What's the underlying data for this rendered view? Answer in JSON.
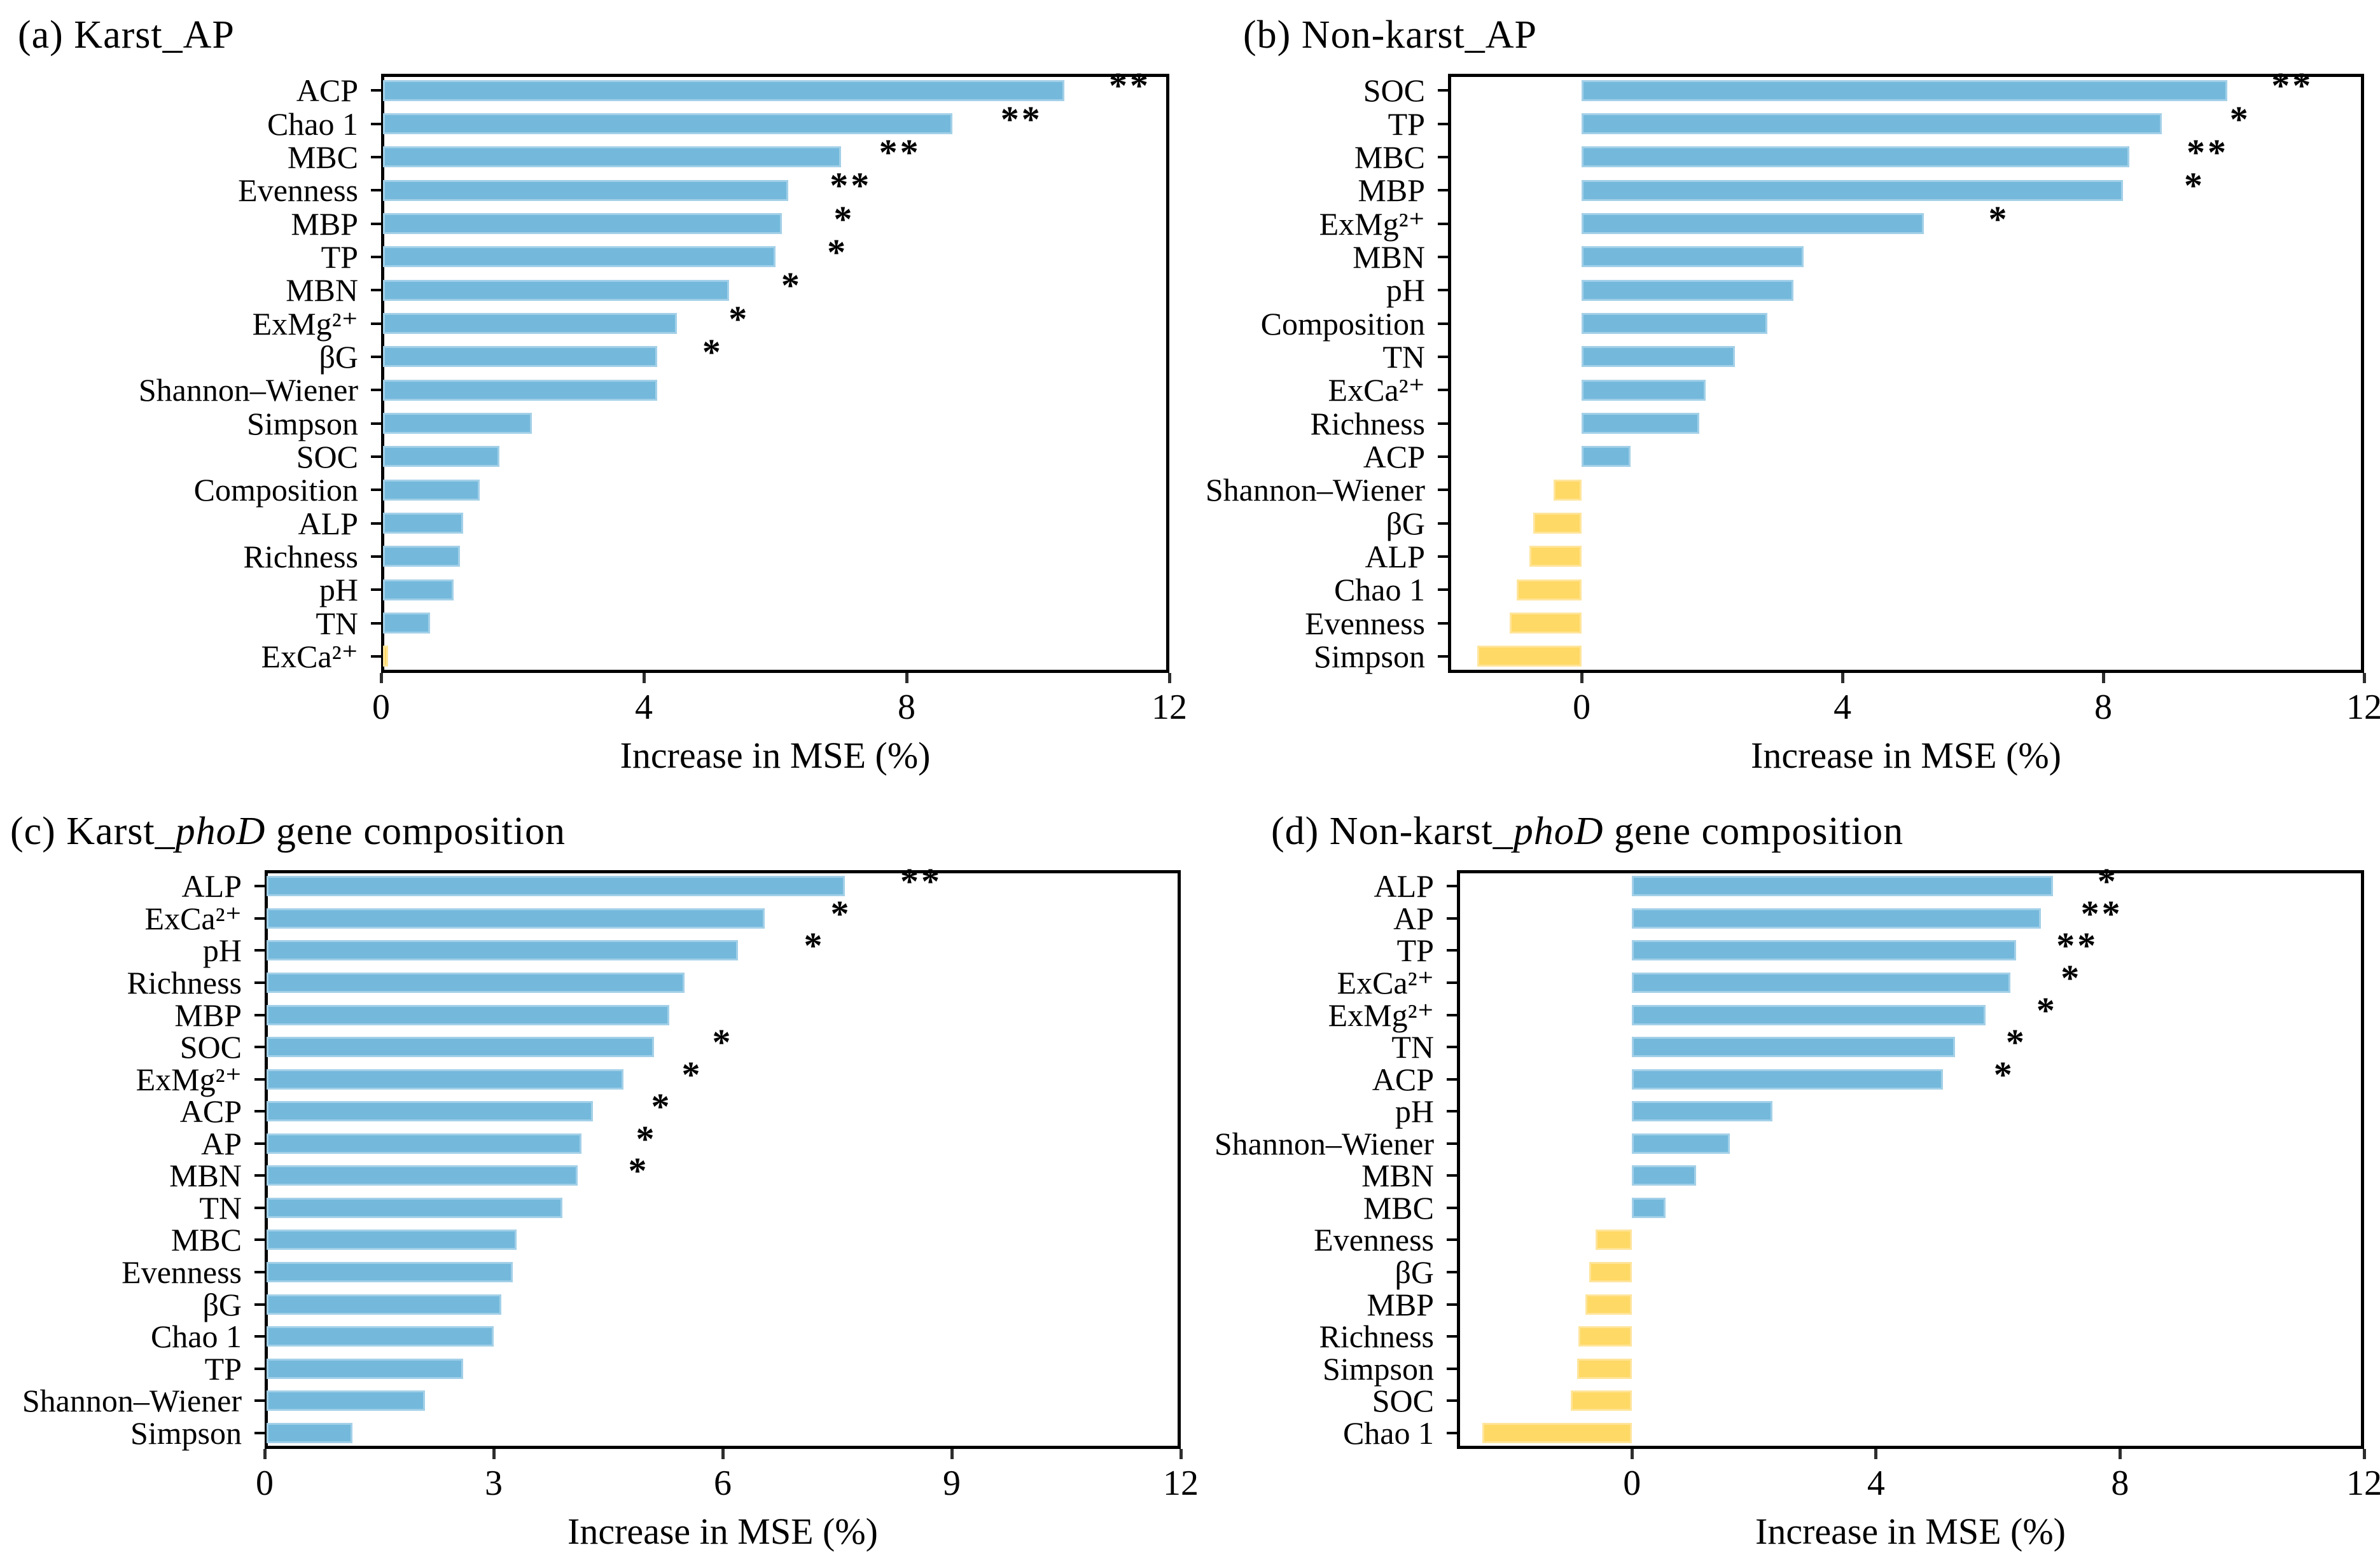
{
  "figure": {
    "xlabel": "Increase in MSE (%)",
    "colors": {
      "positive_bar": "#74b9dc",
      "positive_edge": "#a3d0e8",
      "negative_bar": "#ffd966",
      "negative_edge": "#ffe59b",
      "frame": "#000000",
      "text": "#000000"
    },
    "significance_legend": {
      "single": "*",
      "double": "**"
    }
  },
  "chart_data": [
    {
      "type": "bar",
      "orientation": "horizontal",
      "panel": "a",
      "title_parts": [
        {
          "t": "(a) Karst_AP"
        }
      ],
      "xlabel": "Increase in MSE (%)",
      "xlim": [
        0,
        12
      ],
      "xticks": [
        0,
        4,
        8,
        12
      ],
      "grid": false,
      "categories": [
        "ACP",
        "Chao 1",
        "MBC",
        "Evenness",
        "MBP",
        "TP",
        "MBN",
        "ExMg²⁺",
        "βG",
        "Shannon–Wiener",
        "Simpson",
        "SOC",
        "Composition",
        "ALP",
        "Richness",
        "pH",
        "TN",
        "ExCa²⁺"
      ],
      "values": [
        10.4,
        8.7,
        7.0,
        6.2,
        6.1,
        6.0,
        5.3,
        4.5,
        4.2,
        4.2,
        2.3,
        1.8,
        1.5,
        1.25,
        1.2,
        1.1,
        0.75,
        -0.1
      ],
      "significance": [
        "**",
        "**",
        "**",
        "**",
        "*",
        "*",
        "*",
        "*",
        "*",
        "",
        "",
        "",
        "",
        "",
        "",
        "",
        "",
        ""
      ],
      "sig_positions": [
        11.4,
        9.75,
        7.9,
        7.15,
        7.05,
        6.95,
        6.25,
        5.45,
        5.05,
        null,
        null,
        null,
        null,
        null,
        null,
        null,
        null,
        null
      ]
    },
    {
      "type": "bar",
      "orientation": "horizontal",
      "panel": "b",
      "title_parts": [
        {
          "t": "(b) Non-karst_AP"
        }
      ],
      "xlabel": "Increase in MSE (%)",
      "xlim": [
        -2.05,
        12
      ],
      "xticks": [
        0,
        4,
        8,
        12
      ],
      "grid": false,
      "categories": [
        "SOC",
        "TP",
        "MBC",
        "MBP",
        "ExMg²⁺",
        "MBN",
        "pH",
        "Composition",
        "TN",
        "ExCa²⁺",
        "Richness",
        "ACP",
        "Shannon–Wiener",
        "βG",
        "ALP",
        "Chao 1",
        "Evenness",
        "Simpson"
      ],
      "values": [
        9.9,
        8.9,
        8.4,
        8.3,
        5.25,
        3.4,
        3.25,
        2.85,
        2.35,
        1.9,
        1.8,
        0.75,
        -0.43,
        -0.74,
        -0.8,
        -1.0,
        -1.1,
        -1.6
      ],
      "significance": [
        "**",
        "*",
        "**",
        "*",
        "*",
        "",
        "",
        "",
        "",
        "",
        "",
        "",
        "",
        "",
        "",
        "",
        "",
        ""
      ],
      "sig_positions": [
        10.9,
        10.1,
        9.6,
        9.4,
        6.4,
        null,
        null,
        null,
        null,
        null,
        null,
        null,
        null,
        null,
        null,
        null,
        null,
        null
      ]
    },
    {
      "type": "bar",
      "orientation": "horizontal",
      "panel": "c",
      "title_parts": [
        {
          "t": "(c) Karst_"
        },
        {
          "t": "phoD",
          "i": true
        },
        {
          "t": " gene composition"
        }
      ],
      "xlabel": "Increase in MSE (%)",
      "xlim": [
        0,
        12
      ],
      "xticks": [
        0,
        3,
        6,
        9,
        12
      ],
      "grid": false,
      "categories": [
        "ALP",
        "ExCa²⁺",
        "pH",
        "Richness",
        "MBP",
        "SOC",
        "ExMg²⁺",
        "ACP",
        "AP",
        "MBN",
        "TN",
        "MBC",
        "Evenness",
        "βG",
        "Chao 1",
        "TP",
        "Shannon–Wiener",
        "Simpson"
      ],
      "values": [
        7.6,
        6.55,
        6.2,
        5.5,
        5.3,
        5.1,
        4.7,
        4.3,
        4.15,
        4.1,
        3.9,
        3.3,
        3.25,
        3.1,
        3.0,
        2.6,
        2.1,
        1.15
      ],
      "significance": [
        "**",
        "*",
        "*",
        "",
        "",
        "*",
        "*",
        "*",
        "*",
        "*",
        "",
        "",
        "",
        "",
        "",
        "",
        "",
        ""
      ],
      "sig_positions": [
        8.6,
        7.55,
        7.2,
        null,
        null,
        6.0,
        5.6,
        5.2,
        5.0,
        4.9,
        null,
        null,
        null,
        null,
        null,
        null,
        null,
        null
      ]
    },
    {
      "type": "bar",
      "orientation": "horizontal",
      "panel": "d",
      "title_parts": [
        {
          "t": "(d) Non-karst_"
        },
        {
          "t": "phoD",
          "i": true
        },
        {
          "t": " gene composition"
        }
      ],
      "xlabel": "Increase in MSE (%)",
      "xlim": [
        -2.87,
        12
      ],
      "xticks": [
        0,
        4,
        8,
        12
      ],
      "grid": false,
      "categories": [
        "ALP",
        "AP",
        "TP",
        "ExCa²⁺",
        "ExMg²⁺",
        "TN",
        "ACP",
        "pH",
        "Shannon–Wiener",
        "MBN",
        "MBC",
        "Evenness",
        "βG",
        "MBP",
        "Richness",
        "Simpson",
        "SOC",
        "Chao 1"
      ],
      "values": [
        6.9,
        6.7,
        6.3,
        6.2,
        5.8,
        5.3,
        5.1,
        2.3,
        1.6,
        1.05,
        0.55,
        -0.6,
        -0.7,
        -0.76,
        -0.88,
        -0.9,
        -1.0,
        -2.45
      ],
      "significance": [
        "*",
        "**",
        "**",
        "*",
        "*",
        "*",
        "*",
        "",
        "",
        "",
        "",
        "",
        "",
        "",
        "",
        "",
        "",
        ""
      ],
      "sig_positions": [
        7.8,
        7.7,
        7.3,
        7.2,
        6.8,
        6.3,
        6.1,
        null,
        null,
        null,
        null,
        null,
        null,
        null,
        null,
        null,
        null,
        null
      ]
    }
  ]
}
